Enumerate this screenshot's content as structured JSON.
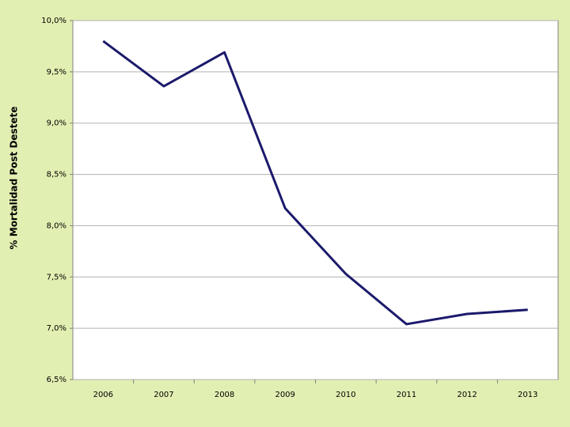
{
  "chart_data": {
    "type": "line",
    "y_label": "% Mortalidad Post Destete",
    "categories": [
      "2006",
      "2007",
      "2008",
      "2009",
      "2010",
      "2011",
      "2012",
      "2013"
    ],
    "series": [
      {
        "color": "#1c1a6b",
        "values": [
          9.8,
          9.36,
          9.69,
          8.17,
          7.53,
          7.04,
          7.14,
          7.18
        ]
      }
    ],
    "ylim": [
      6.5,
      10.0
    ],
    "yticks": [
      {
        "value": 6.5,
        "label": "6,5%"
      },
      {
        "value": 7.0,
        "label": "7,0%"
      },
      {
        "value": 7.5,
        "label": "7,5%"
      },
      {
        "value": 8.0,
        "label": "8,0%"
      },
      {
        "value": 8.5,
        "label": "8,5%"
      },
      {
        "value": 9.0,
        "label": "9,0%"
      },
      {
        "value": 9.5,
        "label": "9,5%"
      },
      {
        "value": 10.0,
        "label": "10,0%"
      }
    ],
    "grid": true
  }
}
